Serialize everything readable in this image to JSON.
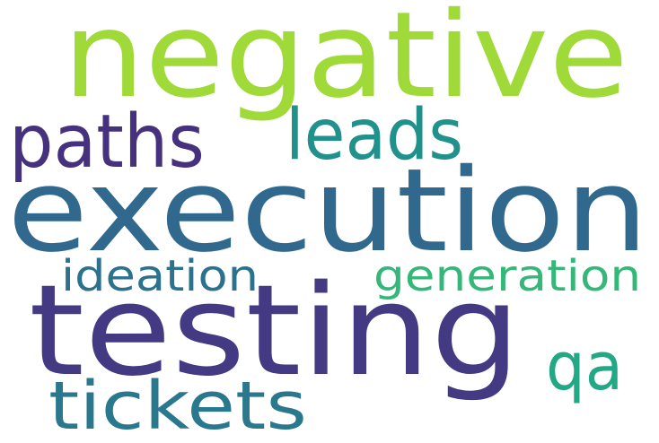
{
  "words": [
    {
      "text": "negative",
      "color": "#a0da39"
    },
    {
      "text": "execution",
      "color": "#31688e"
    },
    {
      "text": "testing",
      "color": "#443983"
    },
    {
      "text": "paths",
      "color": "#46317e"
    },
    {
      "text": "leads",
      "color": "#21918c"
    },
    {
      "text": "tickets",
      "color": "#2a788e"
    },
    {
      "text": "ideation",
      "color": "#2c728e"
    },
    {
      "text": "generation",
      "color": "#35b779"
    },
    {
      "text": "qa",
      "color": "#22a884"
    }
  ]
}
